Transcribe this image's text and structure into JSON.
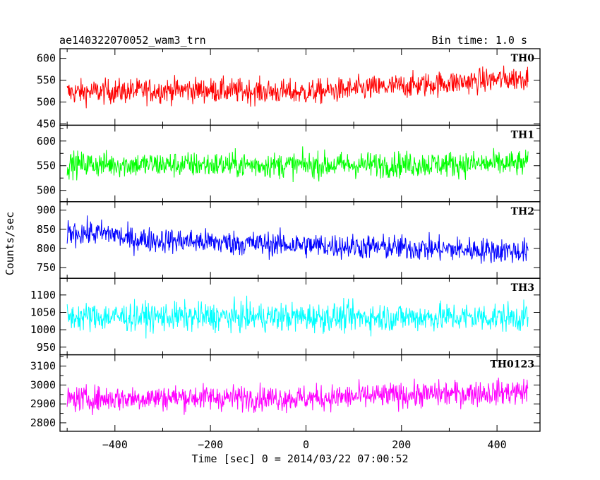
{
  "header": {
    "title": "ae140322070052_wam3_trn",
    "bin_time": "Bin time: 1.0 s"
  },
  "chart_data": {
    "type": "line",
    "xlabel": "Time [sec] 0 = 2014/03/22 07:00:52",
    "ylabel": "Counts/sec",
    "xlim": [
      -515,
      490
    ],
    "x_ticks": [
      -400,
      -200,
      0,
      200,
      400
    ],
    "x_range_data": [
      -500,
      465
    ],
    "bin_time_s": 1.0,
    "grid": false,
    "panels": [
      {
        "name": "TH0",
        "color": "#ff0000",
        "ylim": [
          447,
          622
        ],
        "y_ticks": [
          450,
          500,
          550,
          600
        ],
        "y_labeled": [
          450,
          500,
          550,
          600
        ],
        "trend": [
          [
            -500,
            522
          ],
          [
            -250,
            528
          ],
          [
            0,
            522
          ],
          [
            250,
            540
          ],
          [
            465,
            556
          ]
        ],
        "noise_amplitude": 26
      },
      {
        "name": "TH1",
        "color": "#00ff00",
        "ylim": [
          477,
          632
        ],
        "y_ticks": [
          500,
          525,
          550,
          575,
          600,
          625
        ],
        "y_labeled": [
          500,
          550,
          600
        ],
        "trend": [
          [
            -500,
            553
          ],
          [
            -250,
            552
          ],
          [
            0,
            551
          ],
          [
            250,
            553
          ],
          [
            465,
            554
          ]
        ],
        "noise_amplitude": 24
      },
      {
        "name": "TH2",
        "color": "#0000ff",
        "ylim": [
          722,
          922
        ],
        "y_ticks": [
          750,
          800,
          850,
          900
        ],
        "y_labeled": [
          750,
          800,
          850,
          900
        ],
        "trend": [
          [
            -500,
            842
          ],
          [
            -400,
            838
          ],
          [
            -380,
            825
          ],
          [
            -100,
            812
          ],
          [
            250,
            800
          ],
          [
            465,
            792
          ]
        ],
        "noise_amplitude": 30
      },
      {
        "name": "TH3",
        "color": "#00ffff",
        "ylim": [
          928,
          1148
        ],
        "y_ticks": [
          950,
          1000,
          1050,
          1100
        ],
        "y_labeled": [
          950,
          1000,
          1050,
          1100
        ],
        "trend": [
          [
            -500,
            1037
          ],
          [
            -250,
            1037
          ],
          [
            0,
            1036
          ],
          [
            250,
            1036
          ],
          [
            465,
            1036
          ]
        ],
        "noise_amplitude": 38
      },
      {
        "name": "TH0123",
        "color": "#ff00ff",
        "ylim": [
          2755,
          3160
        ],
        "y_ticks": [
          2800,
          2850,
          2900,
          2950,
          3000,
          3050,
          3100,
          3150
        ],
        "y_labeled": [
          2800,
          2900,
          3000,
          3100
        ],
        "trend": [
          [
            -500,
            2925
          ],
          [
            -250,
            2935
          ],
          [
            0,
            2930
          ],
          [
            250,
            2950
          ],
          [
            465,
            2965
          ]
        ],
        "noise_amplitude": 62
      }
    ]
  }
}
